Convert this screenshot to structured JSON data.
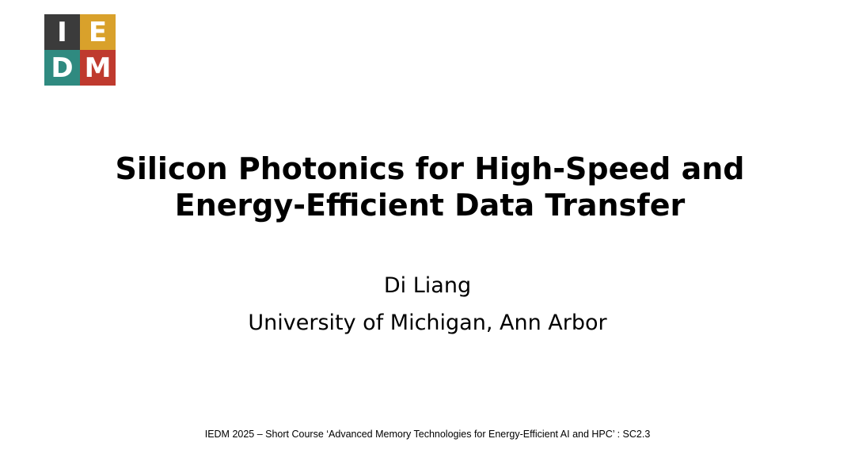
{
  "logo": {
    "letters": [
      "I",
      "E",
      "D",
      "M"
    ],
    "colors": [
      "#3b3b3b",
      "#d9a12b",
      "#2f8a80",
      "#bf3a2e"
    ]
  },
  "title": {
    "line1": "Silicon Photonics for High-Speed and",
    "line2": "Energy-Efficient Data Transfer"
  },
  "author": {
    "name": "Di Liang",
    "affiliation": "University of Michigan, Ann Arbor"
  },
  "footer": "IEDM 2025 – Short Course ‘Advanced Memory Technologies for Energy-Efficient AI and HPC’ : SC2.3"
}
